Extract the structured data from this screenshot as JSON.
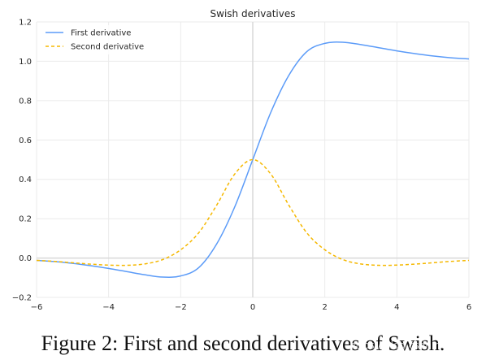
{
  "chart_data": {
    "type": "line",
    "title": "Swish derivatives",
    "xlabel": "",
    "ylabel": "",
    "xlim": [
      -6,
      6
    ],
    "ylim": [
      -0.2,
      1.2
    ],
    "xticks": [
      {
        "value": -6,
        "label": "−6"
      },
      {
        "value": -4,
        "label": "−4"
      },
      {
        "value": -2,
        "label": "−2"
      },
      {
        "value": 0,
        "label": "0"
      },
      {
        "value": 2,
        "label": "2"
      },
      {
        "value": 4,
        "label": "4"
      },
      {
        "value": 6,
        "label": "6"
      }
    ],
    "yticks": [
      {
        "value": -0.2,
        "label": "−0.2"
      },
      {
        "value": 0.0,
        "label": "0.0"
      },
      {
        "value": 0.2,
        "label": "0.2"
      },
      {
        "value": 0.4,
        "label": "0.4"
      },
      {
        "value": 0.6,
        "label": "0.6"
      },
      {
        "value": 0.8,
        "label": "0.8"
      },
      {
        "value": 1.0,
        "label": "1.0"
      },
      {
        "value": 1.2,
        "label": "1.2"
      }
    ],
    "grid": true,
    "legend_position": "top-left",
    "series": [
      {
        "name": "First derivative",
        "color": "#5b9bf8",
        "style": "solid",
        "x": [
          -6,
          -5.5,
          -5,
          -4.5,
          -4,
          -3.5,
          -3,
          -2.5,
          -2,
          -1.5,
          -1,
          -0.5,
          0,
          0.5,
          1,
          1.5,
          2,
          2.5,
          3,
          3.5,
          4,
          4.5,
          5,
          5.5,
          6
        ],
        "y": [
          -0.012,
          -0.018,
          -0.027,
          -0.039,
          -0.053,
          -0.069,
          -0.085,
          -0.097,
          -0.091,
          -0.049,
          0.072,
          0.26,
          0.5,
          0.74,
          0.928,
          1.049,
          1.091,
          1.097,
          1.085,
          1.069,
          1.053,
          1.039,
          1.027,
          1.018,
          1.012
        ]
      },
      {
        "name": "Second derivative",
        "color": "#f5b800",
        "style": "dashed",
        "x": [
          -6,
          -5.5,
          -5,
          -4.5,
          -4,
          -3.5,
          -3,
          -2.5,
          -2,
          -1.5,
          -1,
          -0.5,
          0,
          0.5,
          1,
          1.5,
          2,
          2.5,
          3,
          3.5,
          4,
          4.5,
          5,
          5.5,
          6
        ],
        "y": [
          -0.012,
          -0.017,
          -0.024,
          -0.031,
          -0.036,
          -0.037,
          -0.03,
          -0.008,
          0.042,
          0.128,
          0.269,
          0.427,
          0.5,
          0.427,
          0.269,
          0.128,
          0.042,
          -0.008,
          -0.03,
          -0.037,
          -0.036,
          -0.031,
          -0.024,
          -0.017,
          -0.012
        ]
      }
    ]
  },
  "caption": "Figure 2: First and second derivatives of Swish.",
  "watermark": "https://blog.csdn.net/...49",
  "colors": {
    "grid": "#ebebeb",
    "zero_line": "#d9d9d9",
    "axis_text": "#262626",
    "background": "#ffffff"
  }
}
